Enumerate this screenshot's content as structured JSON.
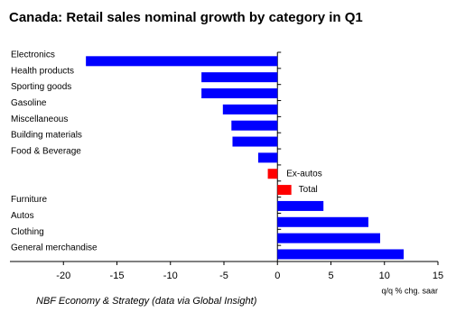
{
  "chart_data": {
    "type": "bar",
    "orientation": "horizontal",
    "title": "Canada: Retail sales nominal growth by category in Q1",
    "x_label": "q/q % chg. saar",
    "source": "NBF Economy & Strategy (data via Global Insight)",
    "categories": [
      "Electronics",
      "Health products",
      "Sporting goods",
      "Gasoline",
      "Miscellaneous",
      "Building materials",
      "Food & Beverage",
      "Ex-autos",
      "Total",
      "Furniture",
      "Autos",
      "Clothing",
      "General merchandise"
    ],
    "values": [
      -17.9,
      -7.1,
      -7.1,
      -5.1,
      -4.3,
      -4.2,
      -1.8,
      -0.9,
      1.3,
      4.3,
      8.5,
      9.6,
      11.8
    ],
    "colors": [
      "#0000ff",
      "#0000ff",
      "#0000ff",
      "#0000ff",
      "#0000ff",
      "#0000ff",
      "#0000ff",
      "#ff0000",
      "#ff0000",
      "#0000ff",
      "#0000ff",
      "#0000ff",
      "#0000ff"
    ],
    "xlim": [
      -25,
      15
    ],
    "xticks": [
      -20,
      -15,
      -10,
      -5,
      0,
      5,
      10,
      15
    ]
  }
}
